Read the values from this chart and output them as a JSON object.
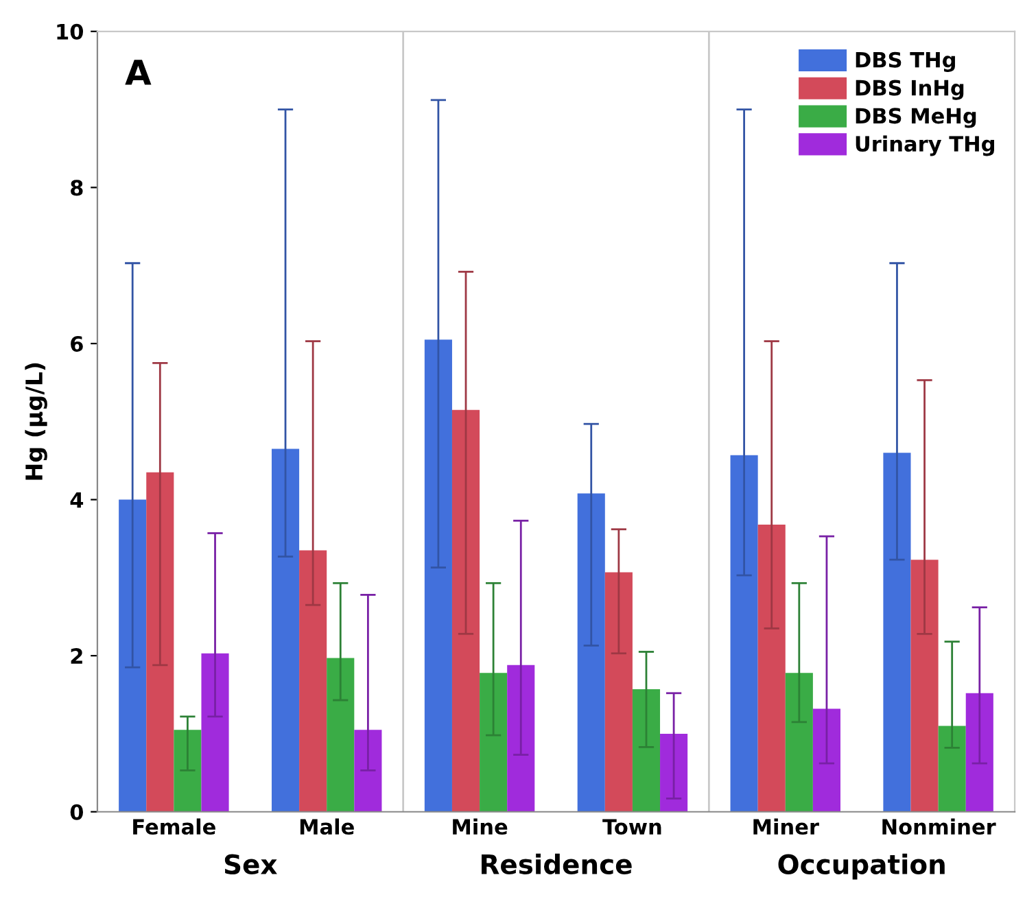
{
  "chart_data": {
    "type": "bar",
    "ylabel": "Hg (µg/L)",
    "categories": [
      "Female",
      "Male",
      "Mine",
      "Town",
      "Miner",
      "Nonminer"
    ],
    "ylim": [
      0,
      10
    ],
    "yticks": [
      0,
      2,
      4,
      6,
      8,
      10
    ],
    "grid": false,
    "legend": "top right",
    "annotations": [
      "A",
      "Sex",
      "Residence",
      "Occupation"
    ],
    "series": [
      {
        "name": "DBS THg",
        "color": "#4270dc",
        "values": [
          4.0,
          4.65,
          6.05,
          4.08,
          4.57,
          4.6
        ],
        "errors": [
          [
            1.85,
            7.03
          ],
          [
            3.27,
            9.0
          ],
          [
            3.13,
            9.12
          ],
          [
            2.13,
            4.97
          ],
          [
            3.03,
            9.0
          ],
          [
            3.23,
            7.03
          ]
        ]
      },
      {
        "name": "DBS InHg",
        "color": "#d34a5a",
        "values": [
          4.35,
          3.35,
          5.15,
          3.07,
          3.68,
          3.23
        ],
        "errors": [
          [
            1.88,
            5.75
          ],
          [
            2.65,
            6.03
          ],
          [
            2.28,
            6.92
          ],
          [
            2.03,
            3.62
          ],
          [
            2.35,
            6.03
          ],
          [
            2.28,
            5.53
          ]
        ]
      },
      {
        "name": "DBS MeHg",
        "color": "#3aac46",
        "values": [
          1.05,
          1.97,
          1.78,
          1.57,
          1.78,
          1.1
        ],
        "errors": [
          [
            0.53,
            1.22
          ],
          [
            1.43,
            2.93
          ],
          [
            0.98,
            2.93
          ],
          [
            0.83,
            2.05
          ],
          [
            1.15,
            2.93
          ],
          [
            0.82,
            2.18
          ]
        ]
      },
      {
        "name": "Urinary THg",
        "color": "#a02bdc",
        "values": [
          2.03,
          1.05,
          1.88,
          1.0,
          1.32,
          1.52
        ],
        "errors": [
          [
            1.22,
            3.57
          ],
          [
            0.53,
            2.78
          ],
          [
            0.73,
            3.73
          ],
          [
            0.17,
            1.52
          ],
          [
            0.62,
            3.53
          ],
          [
            0.62,
            2.62
          ]
        ]
      }
    ]
  }
}
